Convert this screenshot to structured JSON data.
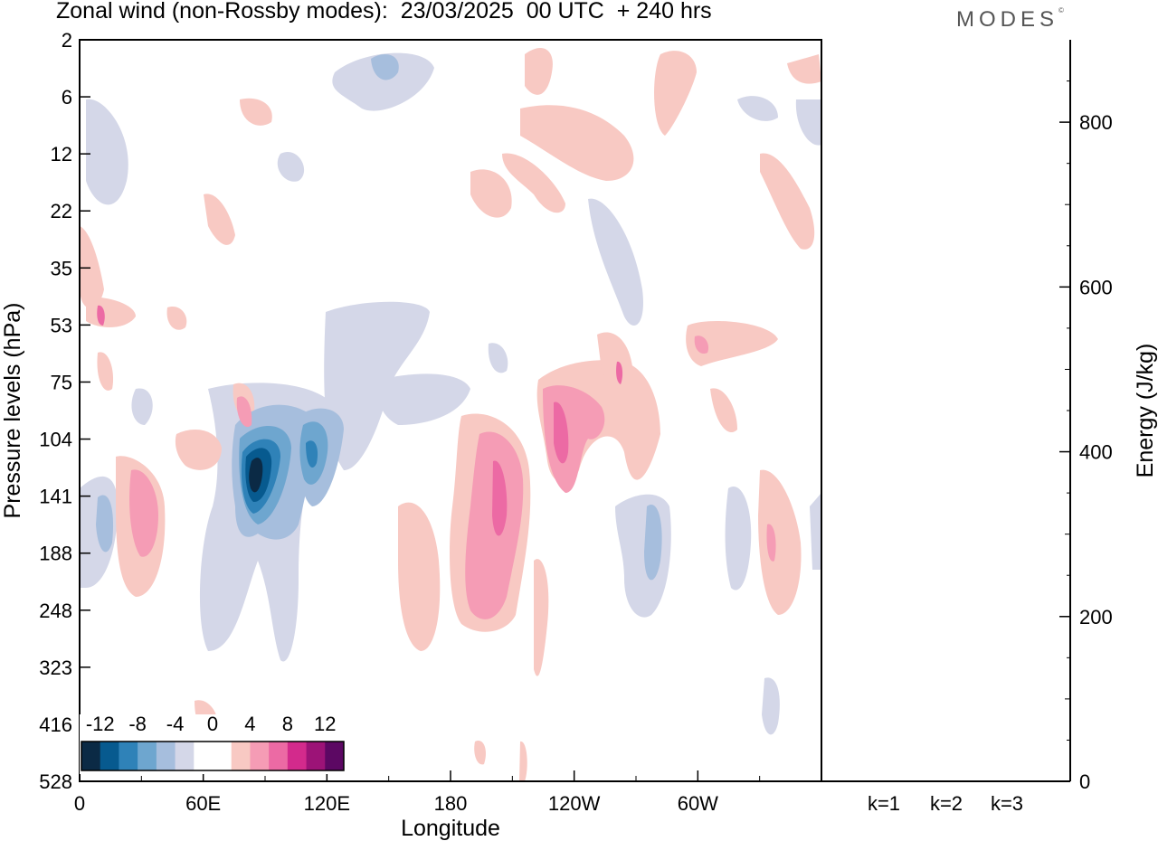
{
  "title": "Zonal wind (non-Rossby modes):  23/03/2025  00 UTC  + 240 hrs",
  "logo": "MODES",
  "logo_mark": "©",
  "chart_data": [
    {
      "type": "heatmap",
      "title": "Zonal wind (non-Rossby modes):  23/03/2025  00 UTC  + 240 hrs",
      "xlabel": "Longitude",
      "ylabel": "Pressure levels (hPa)",
      "x_ticks": [
        "0",
        "60E",
        "120E",
        "180",
        "120W",
        "60W"
      ],
      "y_ticks": [
        "2",
        "6",
        "12",
        "22",
        "35",
        "53",
        "75",
        "104",
        "141",
        "188",
        "248",
        "323",
        "416",
        "528"
      ],
      "colorbar": {
        "labels": [
          "-12",
          "-8",
          "-4",
          "0",
          "4",
          "8",
          "12"
        ],
        "colors": [
          "#0b2a45",
          "#075a8f",
          "#2f82b8",
          "#6ea6cf",
          "#a6bedd",
          "#d4d7e8",
          "#ffffff",
          "#ffffff",
          "#f8c9c3",
          "#f59cb5",
          "#ec6aa4",
          "#d32a8c",
          "#9c1377",
          "#5c0863"
        ]
      },
      "features": [
        {
          "lon": 85,
          "level": 141,
          "value": -12
        },
        {
          "lon": 112,
          "level": 120,
          "value": -8
        },
        {
          "lon": 190,
          "level": 150,
          "value": 8
        },
        {
          "lon": 235,
          "level": 104,
          "value": 8
        },
        {
          "lon": 28,
          "level": 160,
          "value": 4
        },
        {
          "lon": 290,
          "level": 180,
          "value": -4
        },
        {
          "lon": 335,
          "level": 175,
          "value": 4
        }
      ]
    },
    {
      "type": "bar",
      "categories": [
        "k=1",
        "k=2",
        "k=3"
      ],
      "values": [
        1,
        1,
        1
      ],
      "ylabel": "Energy (J/kg)",
      "y_ticks": [
        "0",
        "200",
        "400",
        "600",
        "800"
      ],
      "ylim": [
        0,
        900
      ]
    }
  ]
}
